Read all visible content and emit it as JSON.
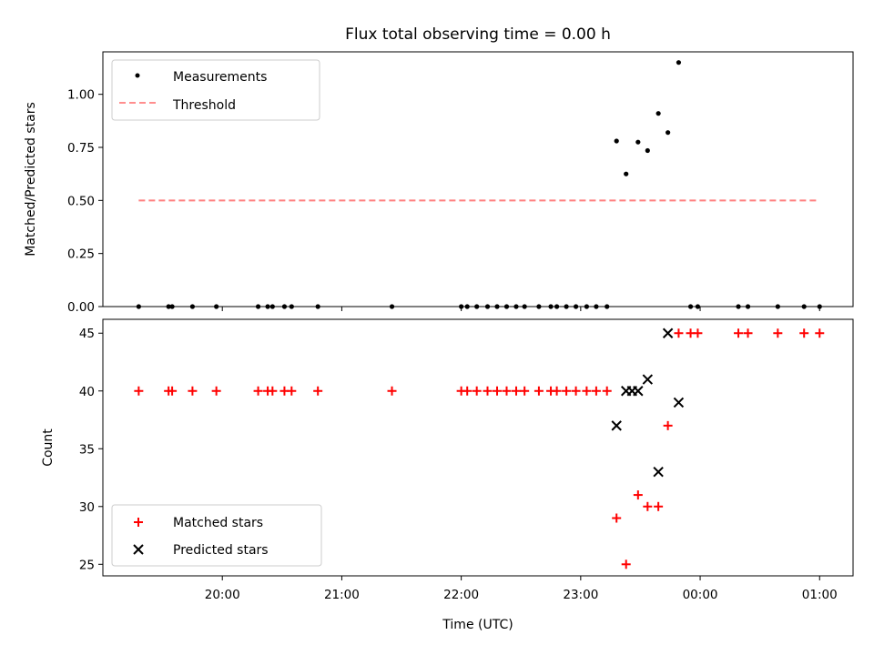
{
  "title": "Flux total observing time = 0.00 h",
  "colors": {
    "matched": "#ff0000",
    "predicted": "#000000",
    "threshold": "#ff7f7f",
    "measurement": "#000000"
  },
  "chart_data": [
    {
      "type": "scatter",
      "ylabel": "Matched/Predicted stars",
      "ylim": [
        0,
        1.2
      ],
      "yticks": [
        "0.00",
        "0.25",
        "0.50",
        "0.75",
        "1.00"
      ],
      "yticks_values": [
        0,
        0.25,
        0.5,
        0.75,
        1.0
      ],
      "xlim": [
        19.0,
        1.28
      ],
      "legend": {
        "position": "top-left",
        "entries": [
          "Measurements",
          "Threshold"
        ]
      },
      "threshold": {
        "name": "Threshold",
        "x": [
          19.3,
          1.0
        ],
        "y": 0.5
      },
      "series": [
        {
          "name": "Measurements",
          "points": [
            [
              19.3,
              0
            ],
            [
              19.55,
              0
            ],
            [
              19.58,
              0
            ],
            [
              19.75,
              0
            ],
            [
              19.95,
              0
            ],
            [
              20.3,
              0
            ],
            [
              20.38,
              0
            ],
            [
              20.42,
              0
            ],
            [
              20.52,
              0
            ],
            [
              20.58,
              0
            ],
            [
              20.8,
              0
            ],
            [
              21.42,
              0
            ],
            [
              22.0,
              0
            ],
            [
              22.05,
              0
            ],
            [
              22.13,
              0
            ],
            [
              22.22,
              0
            ],
            [
              22.3,
              0
            ],
            [
              22.38,
              0
            ],
            [
              22.46,
              0
            ],
            [
              22.53,
              0
            ],
            [
              22.65,
              0
            ],
            [
              22.75,
              0
            ],
            [
              22.8,
              0
            ],
            [
              22.88,
              0
            ],
            [
              22.96,
              0
            ],
            [
              23.05,
              0
            ],
            [
              23.13,
              0
            ],
            [
              23.22,
              0
            ],
            [
              23.3,
              0.78
            ],
            [
              23.38,
              0.625
            ],
            [
              23.48,
              0.775
            ],
            [
              23.56,
              0.735
            ],
            [
              23.65,
              0.91
            ],
            [
              23.73,
              0.82
            ],
            [
              23.82,
              1.15
            ],
            [
              23.92,
              0
            ],
            [
              23.98,
              0
            ],
            [
              24.32,
              0
            ],
            [
              24.4,
              0
            ],
            [
              24.65,
              0
            ],
            [
              24.87,
              0
            ],
            [
              25.0,
              0
            ]
          ]
        }
      ]
    },
    {
      "type": "scatter",
      "xlabel": "Time (UTC)",
      "ylabel": "Count",
      "ylim": [
        24,
        46.2
      ],
      "yticks": [
        "25",
        "30",
        "35",
        "40",
        "45"
      ],
      "yticks_values": [
        25,
        30,
        35,
        40,
        45
      ],
      "xticks": [
        "20:00",
        "21:00",
        "22:00",
        "23:00",
        "00:00",
        "01:00"
      ],
      "xticks_values": [
        20,
        21,
        22,
        23,
        24,
        25
      ],
      "xlim": [
        19.0,
        1.28
      ],
      "legend": {
        "position": "bottom-left",
        "entries": [
          "Matched stars",
          "Predicted stars"
        ]
      },
      "series": [
        {
          "name": "Matched stars",
          "points": [
            [
              19.3,
              40
            ],
            [
              19.55,
              40
            ],
            [
              19.58,
              40
            ],
            [
              19.75,
              40
            ],
            [
              19.95,
              40
            ],
            [
              20.3,
              40
            ],
            [
              20.38,
              40
            ],
            [
              20.42,
              40
            ],
            [
              20.52,
              40
            ],
            [
              20.58,
              40
            ],
            [
              20.8,
              40
            ],
            [
              21.42,
              40
            ],
            [
              22.0,
              40
            ],
            [
              22.05,
              40
            ],
            [
              22.13,
              40
            ],
            [
              22.22,
              40
            ],
            [
              22.3,
              40
            ],
            [
              22.38,
              40
            ],
            [
              22.46,
              40
            ],
            [
              22.53,
              40
            ],
            [
              22.65,
              40
            ],
            [
              22.75,
              40
            ],
            [
              22.8,
              40
            ],
            [
              22.88,
              40
            ],
            [
              22.96,
              40
            ],
            [
              23.05,
              40
            ],
            [
              23.13,
              40
            ],
            [
              23.22,
              40
            ],
            [
              23.3,
              29
            ],
            [
              23.38,
              25
            ],
            [
              23.48,
              31
            ],
            [
              23.56,
              30
            ],
            [
              23.65,
              30
            ],
            [
              23.73,
              37
            ],
            [
              23.82,
              45
            ],
            [
              23.92,
              45
            ],
            [
              23.98,
              45
            ],
            [
              24.32,
              45
            ],
            [
              24.4,
              45
            ],
            [
              24.65,
              45
            ],
            [
              24.87,
              45
            ],
            [
              25.0,
              45
            ]
          ]
        },
        {
          "name": "Predicted stars",
          "points": [
            [
              23.3,
              37
            ],
            [
              23.38,
              40
            ],
            [
              23.43,
              40
            ],
            [
              23.48,
              40
            ],
            [
              23.56,
              41
            ],
            [
              23.65,
              33
            ],
            [
              23.73,
              45
            ],
            [
              23.82,
              39
            ]
          ]
        }
      ]
    }
  ]
}
